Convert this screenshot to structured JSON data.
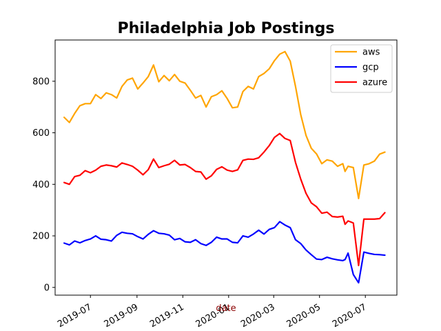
{
  "chart_data": {
    "type": "line",
    "title": "Philadelphia Job Postings",
    "xlabel": "date",
    "ylabel": "",
    "xlabel_color": "#8b0000",
    "ylim": [
      -30,
      960
    ],
    "xlim": [
      "2019-05-15",
      "2020-08-12"
    ],
    "grid": false,
    "legend_position": "top-right",
    "x_ticks": [
      "2019-07",
      "2019-09",
      "2019-11",
      "2020-01",
      "2020-03",
      "2020-05",
      "2020-07"
    ],
    "y_ticks": [
      0,
      200,
      400,
      600,
      800
    ],
    "x": [
      "2019-05-27",
      "2019-06-03",
      "2019-06-10",
      "2019-06-17",
      "2019-06-24",
      "2019-07-01",
      "2019-07-08",
      "2019-07-15",
      "2019-07-22",
      "2019-07-29",
      "2019-08-05",
      "2019-08-12",
      "2019-08-19",
      "2019-08-26",
      "2019-09-02",
      "2019-09-09",
      "2019-09-16",
      "2019-09-23",
      "2019-09-30",
      "2019-10-07",
      "2019-10-14",
      "2019-10-21",
      "2019-10-28",
      "2019-11-04",
      "2019-11-11",
      "2019-11-18",
      "2019-11-25",
      "2019-12-02",
      "2019-12-09",
      "2019-12-16",
      "2019-12-23",
      "2019-12-30",
      "2020-01-06",
      "2020-01-13",
      "2020-01-20",
      "2020-01-27",
      "2020-02-03",
      "2020-02-10",
      "2020-02-17",
      "2020-02-24",
      "2020-03-02",
      "2020-03-09",
      "2020-03-16",
      "2020-03-23",
      "2020-03-30",
      "2020-04-06",
      "2020-04-13",
      "2020-04-20",
      "2020-04-27",
      "2020-05-04",
      "2020-05-11",
      "2020-05-18",
      "2020-05-25",
      "2020-06-01",
      "2020-06-04",
      "2020-06-08",
      "2020-06-15",
      "2020-06-22",
      "2020-06-29",
      "2020-07-06",
      "2020-07-13",
      "2020-07-20",
      "2020-07-27"
    ],
    "series": [
      {
        "name": "aws",
        "color": "#ffa500",
        "values": [
          660,
          640,
          675,
          705,
          713,
          713,
          748,
          733,
          755,
          748,
          735,
          780,
          805,
          812,
          770,
          793,
          818,
          863,
          798,
          822,
          802,
          826,
          800,
          793,
          765,
          735,
          745,
          700,
          740,
          748,
          763,
          733,
          697,
          700,
          760,
          780,
          770,
          818,
          830,
          848,
          880,
          905,
          915,
          878,
          780,
          670,
          590,
          540,
          518,
          480,
          495,
          490,
          470,
          480,
          450,
          470,
          465,
          345,
          475,
          480,
          490,
          517,
          525
        ]
      },
      {
        "name": "gcp",
        "color": "#0000ff",
        "values": [
          172,
          165,
          180,
          173,
          182,
          188,
          200,
          187,
          185,
          180,
          202,
          214,
          210,
          208,
          197,
          188,
          206,
          220,
          210,
          208,
          203,
          185,
          190,
          177,
          175,
          185,
          170,
          163,
          175,
          195,
          188,
          188,
          175,
          173,
          200,
          195,
          207,
          222,
          207,
          225,
          232,
          255,
          242,
          232,
          185,
          170,
          145,
          127,
          110,
          108,
          117,
          111,
          107,
          104,
          108,
          133,
          50,
          18,
          137,
          132,
          128,
          127,
          125
        ]
      },
      {
        "name": "azure",
        "color": "#ff0000",
        "values": [
          407,
          400,
          430,
          435,
          453,
          445,
          455,
          470,
          475,
          472,
          467,
          483,
          477,
          470,
          455,
          437,
          457,
          498,
          465,
          472,
          478,
          493,
          475,
          477,
          465,
          450,
          448,
          420,
          433,
          458,
          468,
          455,
          450,
          456,
          493,
          498,
          497,
          503,
          525,
          550,
          582,
          597,
          578,
          570,
          485,
          420,
          365,
          328,
          313,
          288,
          292,
          275,
          273,
          276,
          245,
          258,
          250,
          85,
          265,
          265,
          265,
          267,
          290
        ]
      }
    ]
  }
}
